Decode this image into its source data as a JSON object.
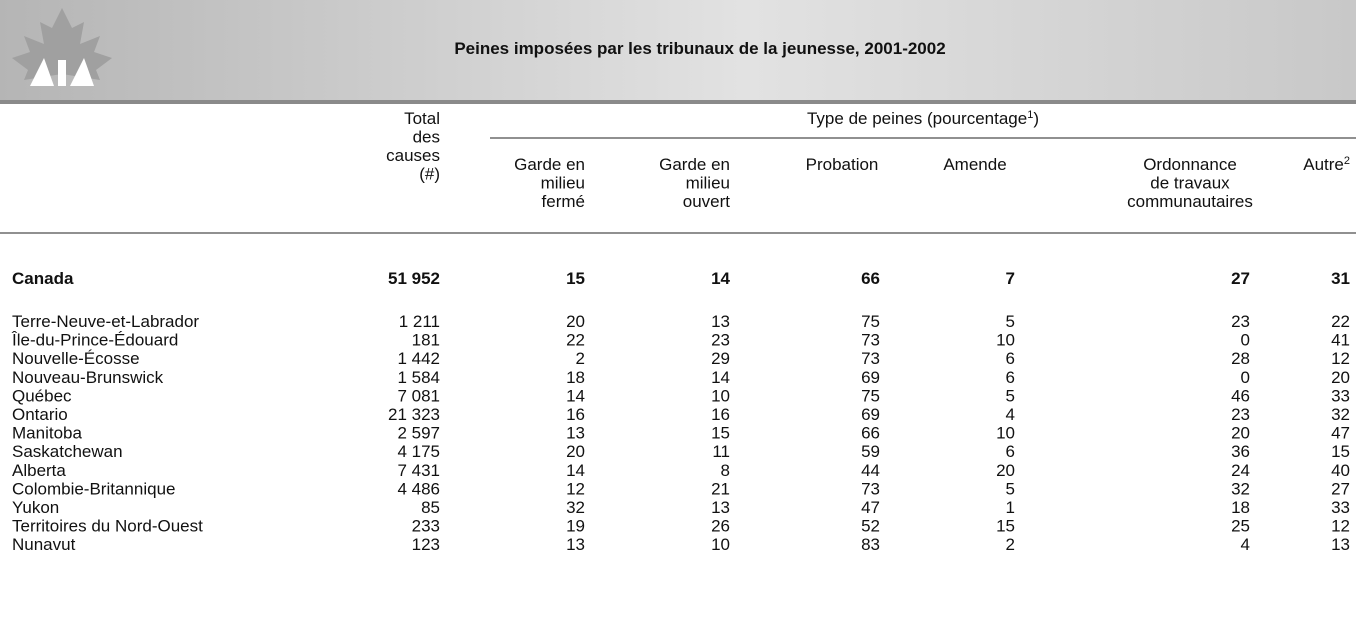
{
  "header": {
    "title": "Peines imposées par les tribunaux de la jeunesse, 2001-2002"
  },
  "table": {
    "total_header": [
      "Total",
      "des",
      "causes",
      "(#)"
    ],
    "group_header": {
      "text": "Type de peines (pourcentage",
      "note": "1",
      "close": ")"
    },
    "columns": [
      {
        "lines": [
          "Garde en",
          "milieu",
          "fermé"
        ]
      },
      {
        "lines": [
          "Garde en",
          "milieu",
          "ouvert"
        ]
      },
      {
        "lines": [
          "Probation"
        ]
      },
      {
        "lines": [
          "Amende"
        ]
      },
      {
        "lines": [
          "Ordonnance",
          "de travaux",
          "communautaires"
        ]
      },
      {
        "lines": [
          "Autre"
        ],
        "note": "2"
      }
    ],
    "total_row": {
      "label": "Canada",
      "values": [
        "51 952",
        15,
        14,
        66,
        7,
        27,
        31
      ]
    },
    "rows": [
      {
        "label": "Terre-Neuve-et-Labrador",
        "values": [
          "1 211",
          20,
          13,
          75,
          5,
          23,
          22
        ]
      },
      {
        "label": "Île-du-Prince-Édouard",
        "values": [
          181,
          22,
          23,
          73,
          10,
          0,
          41
        ]
      },
      {
        "label": "Nouvelle-Écosse",
        "values": [
          "1 442",
          2,
          29,
          73,
          6,
          28,
          12
        ]
      },
      {
        "label": "Nouveau-Brunswick",
        "values": [
          "1 584",
          18,
          14,
          69,
          6,
          0,
          20
        ]
      },
      {
        "label": "Québec",
        "values": [
          "7 081",
          14,
          10,
          75,
          5,
          46,
          33
        ]
      },
      {
        "label": "Ontario",
        "values": [
          "21 323",
          16,
          16,
          69,
          4,
          23,
          32
        ]
      },
      {
        "label": "Manitoba",
        "values": [
          "2 597",
          13,
          15,
          66,
          10,
          20,
          47
        ]
      },
      {
        "label": "Saskatchewan",
        "values": [
          "4 175",
          20,
          11,
          59,
          6,
          36,
          15
        ]
      },
      {
        "label": "Alberta",
        "values": [
          "7 431",
          14,
          8,
          44,
          20,
          24,
          40
        ]
      },
      {
        "label": "Colombie-Britannique",
        "values": [
          "4 486",
          12,
          21,
          73,
          5,
          32,
          27
        ]
      },
      {
        "label": "Yukon",
        "values": [
          85,
          32,
          13,
          47,
          1,
          18,
          33
        ]
      },
      {
        "label": "Territoires du Nord-Ouest",
        "values": [
          233,
          19,
          26,
          52,
          15,
          25,
          12
        ]
      },
      {
        "label": "Nunavut",
        "values": [
          123,
          13,
          10,
          83,
          2,
          4,
          13
        ]
      }
    ]
  }
}
